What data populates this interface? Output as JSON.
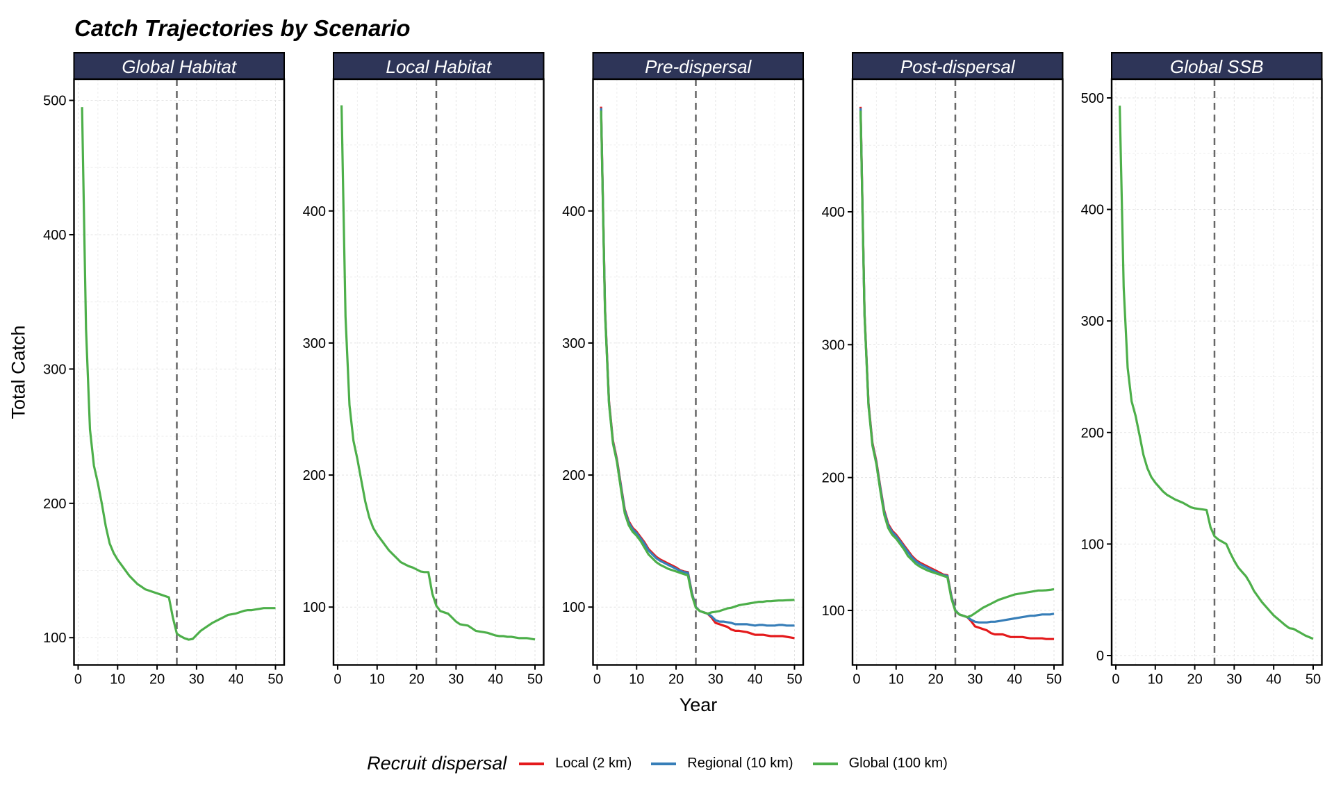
{
  "chart_data": {
    "type": "line",
    "title": "Catch Trajectories by Scenario",
    "xlabel": "Year",
    "ylabel": "Total Catch",
    "grid": true,
    "legend_position": "bottom",
    "legend_title": "Recruit dispersal",
    "legend": [
      {
        "name": "Local (2 km)",
        "color": "#E41A1C"
      },
      {
        "name": "Regional (10 km)",
        "color": "#377EB8"
      },
      {
        "name": "Global (100 km)",
        "color": "#4DAF4A"
      }
    ],
    "reference_line": {
      "x": 25,
      "style": "dashed",
      "color": "#666666"
    },
    "x": [
      1,
      2,
      3,
      4,
      5,
      6,
      7,
      8,
      9,
      10,
      11,
      12,
      13,
      14,
      15,
      16,
      17,
      18,
      19,
      20,
      21,
      22,
      23,
      24,
      25,
      26,
      27,
      28,
      29,
      30,
      31,
      32,
      33,
      34,
      35,
      36,
      37,
      38,
      39,
      40,
      41,
      42,
      43,
      44,
      45,
      46,
      47,
      48,
      49,
      50
    ],
    "xlim": [
      -1.05,
      52.2
    ],
    "xticks": [
      0,
      10,
      20,
      30,
      40,
      50
    ],
    "panels": [
      {
        "title": "Global Habitat",
        "ylim": [
          79.7,
          515.8
        ],
        "yticks": [
          100,
          200,
          300,
          400,
          500
        ],
        "series": [
          {
            "name": "Global (100 km)",
            "values": [
              495,
              330,
              255,
              228,
              215,
              200,
              183,
              170,
              163,
              158,
              154,
              150,
              146,
              143,
              140,
              138,
              136,
              135,
              134,
              133,
              132,
              131,
              130,
              115,
              103,
              101,
              99.5,
              98.5,
              99,
              102,
              105,
              107,
              109,
              111,
              112.5,
              114,
              115.5,
              117,
              117.5,
              118,
              119,
              120,
              120.5,
              120.5,
              121,
              121.5,
              122,
              122,
              122,
              122
            ]
          }
        ]
      },
      {
        "title": "Local Habitat",
        "ylim": [
          56.2,
          499.8
        ],
        "yticks": [
          100,
          200,
          300,
          400
        ],
        "series": [
          {
            "name": "Global (100 km)",
            "values": [
              480,
              320,
              253,
              226,
              212,
              196,
              180,
              168,
              160,
              155,
              151,
              147,
              143,
              140,
              137,
              134,
              132.5,
              131,
              130,
              128.5,
              127,
              126.5,
              126.5,
              110,
              101,
              97,
              96,
              95,
              92,
              89,
              87,
              86.5,
              86,
              84,
              82,
              81.5,
              81,
              80.5,
              79.5,
              78.5,
              78,
              78,
              77.5,
              77.5,
              77,
              76.5,
              76.5,
              76.5,
              76,
              75.5
            ]
          }
        ]
      },
      {
        "title": "Pre-dispersal",
        "ylim": [
          56.2,
          499.8
        ],
        "yticks": [
          100,
          200,
          300,
          400
        ],
        "series": [
          {
            "name": "Local (2 km)",
            "values": [
              479,
              326,
              256,
              226,
              212,
              193,
              174,
              165,
              160,
              157,
              153,
              149,
              144,
              141,
              138,
              136,
              134.5,
              133,
              131.5,
              130,
              128,
              127,
              126.5,
              111,
              100,
              97,
              96,
              95,
              92,
              88,
              87,
              86,
              85,
              83,
              82,
              82,
              81.5,
              81,
              80,
              79,
              79,
              79,
              78.5,
              78,
              78,
              78,
              78,
              77.5,
              77,
              76.5
            ]
          },
          {
            "name": "Regional (10 km)",
            "values": [
              478,
              325,
              255,
              225,
              211,
              192,
              173,
              164,
              159,
              156,
              152,
              148,
              143,
              140,
              137,
              135,
              133.5,
              132,
              130.5,
              129,
              127.5,
              126.5,
              126,
              110.5,
              100,
              97,
              96,
              95,
              93,
              90,
              89,
              89,
              88.5,
              88,
              87,
              87,
              87,
              87,
              86.5,
              86,
              86.5,
              86.5,
              86,
              86,
              86,
              86.5,
              86.5,
              86,
              86,
              86
            ]
          },
          {
            "name": "Global (100 km)",
            "values": [
              476,
              323,
              254,
              224,
              210,
              190,
              171,
              162,
              157,
              154,
              150,
              145,
              140,
              137,
              134,
              132,
              130.5,
              129,
              128,
              127,
              126,
              125,
              124,
              109,
              99.5,
              97,
              96,
              95,
              96,
              96.5,
              97,
              98,
              99,
              99.5,
              100.5,
              101.5,
              102,
              102.5,
              103,
              103.5,
              104,
              104,
              104.5,
              104.5,
              104.8,
              105,
              105,
              105.2,
              105.3,
              105.5
            ]
          }
        ]
      },
      {
        "title": "Post-dispersal",
        "ylim": [
          59,
          499.8
        ],
        "yticks": [
          100,
          200,
          300,
          400
        ],
        "series": [
          {
            "name": "Local (2 km)",
            "values": [
              479,
              324,
              256,
              226,
              212,
              193,
              175,
              165,
              160,
              157,
              153,
              149,
              145,
              141,
              138,
              136,
              134.5,
              133,
              131.5,
              130,
              128.5,
              127,
              126.5,
              111,
              100,
              97,
              96,
              95,
              92,
              88,
              87,
              86,
              85,
              83,
              82,
              82,
              82,
              81,
              80,
              80,
              80,
              80,
              79.5,
              79,
              79,
              79,
              79,
              78.5,
              78.5,
              78.5
            ]
          },
          {
            "name": "Regional (10 km)",
            "values": [
              478,
              323,
              255,
              225,
              211,
              192,
              174,
              164,
              159,
              156,
              152,
              148,
              144,
              140,
              137,
              135,
              133.5,
              132,
              130.5,
              129,
              127.5,
              126.5,
              126,
              110.5,
              100,
              97,
              96,
              95,
              93,
              91.5,
              91,
              91,
              91,
              91.5,
              91.5,
              92,
              92.5,
              93,
              93.5,
              94,
              94.5,
              95,
              95.5,
              96,
              96,
              96.5,
              97,
              97,
              97,
              97.5
            ]
          },
          {
            "name": "Global (100 km)",
            "values": [
              476,
              322,
              254,
              224,
              210,
              190,
              172,
              162,
              157,
              154,
              150,
              146,
              141,
              138,
              135,
              133,
              131.5,
              130,
              129,
              128,
              127,
              126,
              125,
              109,
              99.5,
              97,
              96,
              95,
              96,
              98,
              100,
              102,
              103.5,
              105,
              106.5,
              108,
              109,
              110,
              111,
              112,
              112.5,
              113,
              113.5,
              114,
              114.5,
              115,
              115,
              115.2,
              115.5,
              116
            ]
          }
        ]
      },
      {
        "title": "Global SSB",
        "ylim": [
          -8.4,
          516.8
        ],
        "yticks": [
          0,
          100,
          200,
          300,
          400,
          500
        ],
        "series": [
          {
            "name": "Global (100 km)",
            "values": [
              493,
              330,
              258,
              228,
              215,
              198,
              180,
              168,
              160,
              155,
              151,
              147,
              144,
              142,
              140,
              138.5,
              137,
              135,
              133,
              132,
              131.5,
              131,
              130.5,
              115,
              107,
              104,
              102,
              100,
              92,
              85,
              79,
              75,
              71,
              65,
              58,
              53,
              48,
              44,
              40,
              36,
              33,
              30,
              27,
              24.5,
              24,
              22,
              20,
              18,
              16.5,
              15
            ]
          }
        ]
      }
    ]
  }
}
